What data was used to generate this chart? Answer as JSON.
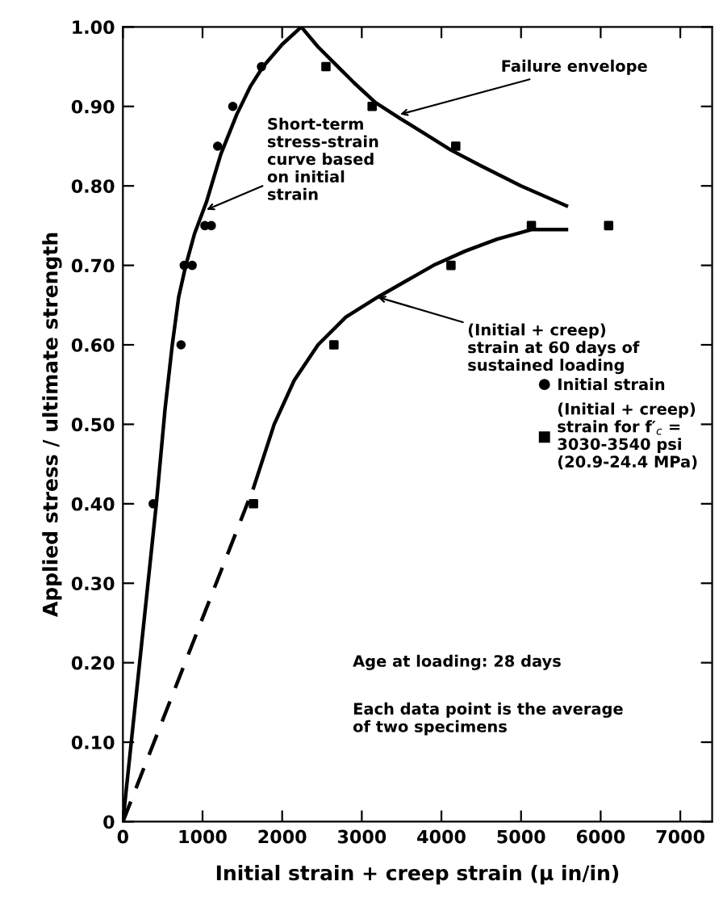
{
  "chart_data": {
    "type": "scatter",
    "xlabel": "Initial strain + creep strain (μ in/in)",
    "ylabel": "Applied stress / ultimate strength",
    "xlim": [
      0,
      7400
    ],
    "ylim": [
      0,
      1.0
    ],
    "xticks": [
      0,
      1000,
      2000,
      3000,
      4000,
      5000,
      6000,
      7000
    ],
    "yticks": [
      0,
      {
        "value": 0.1,
        "label": "0.10"
      },
      {
        "value": 0.2,
        "label": "0.20"
      },
      {
        "value": 0.3,
        "label": "0.30"
      },
      {
        "value": 0.4,
        "label": "0.40"
      },
      {
        "value": 0.5,
        "label": "0.50"
      },
      {
        "value": 0.6,
        "label": "0.60"
      },
      {
        "value": 0.7,
        "label": "0.70"
      },
      {
        "value": 0.8,
        "label": "0.80"
      },
      {
        "value": 0.9,
        "label": "0.90"
      },
      {
        "value": 1.0,
        "label": "1.00"
      }
    ],
    "grid": false,
    "legend": "right",
    "series": [
      {
        "name": "Initial strain",
        "marker": "circle",
        "color": "#000000",
        "x": [
          380,
          730,
          770,
          870,
          1030,
          1110,
          1190,
          1380,
          1740
        ],
        "values": [
          0.4,
          0.6,
          0.7,
          0.7,
          0.75,
          0.75,
          0.85,
          0.9,
          0.95
        ]
      },
      {
        "name": "(Initial + creep)\nstrain for f′$_{c}$ =\n3030-3540 psi\n(20.9-24.4 MPa)",
        "marker": "square",
        "color": "#000000",
        "x": [
          1640,
          2650,
          4120,
          5130,
          6100,
          4180,
          3130,
          2550
        ],
        "values": [
          0.4,
          0.6,
          0.7,
          0.75,
          0.75,
          0.85,
          0.9,
          0.95
        ]
      },
      {
        "type": "line",
        "line_style": "solid",
        "color": "#000000",
        "x": [
          0,
          420,
          530,
          620,
          700,
          790,
          900,
          1050,
          1230,
          1430,
          1600,
          1760,
          2000,
          2240
        ],
        "values": [
          0,
          0.4,
          0.52,
          0.6,
          0.66,
          0.7,
          0.74,
          0.78,
          0.84,
          0.89,
          0.925,
          0.95,
          0.978,
          1.0
        ]
      },
      {
        "type": "line",
        "line_style": "solid",
        "color": "#000000",
        "x": [
          2240,
          2450,
          2700,
          2900,
          3170,
          3480,
          3800,
          4120,
          4500,
          5000,
          5570
        ],
        "values": [
          1.0,
          0.975,
          0.95,
          0.93,
          0.905,
          0.885,
          0.865,
          0.845,
          0.825,
          0.8,
          0.775
        ]
      },
      {
        "type": "line",
        "line_style": "solid",
        "color": "#000000",
        "x": [
          1640,
          1900,
          2150,
          2450,
          2800,
          3200,
          3550,
          3900,
          4300,
          4700,
          5130,
          5570
        ],
        "values": [
          0.42,
          0.5,
          0.555,
          0.6,
          0.635,
          0.66,
          0.68,
          0.7,
          0.718,
          0.733,
          0.745,
          0.745
        ]
      },
      {
        "type": "line",
        "line_style": "dashed",
        "color": "#000000",
        "x": [
          0,
          1640
        ],
        "values": [
          0,
          0.42
        ]
      }
    ],
    "annotations": [
      {
        "text": "Failure envelope",
        "x": 3480,
        "y": 0.89
      },
      {
        "text": "Short-term\nstress-strain\ncurve based\non initial\nstrain",
        "x": 1050,
        "y": 0.77
      },
      {
        "text": "(Initial + creep)\nstrain at 60 days of\nsustained loading",
        "x": 3200,
        "y": 0.66
      },
      "Age at loading: 28 days",
      "Each data point is the average\nof two specimens"
    ]
  }
}
